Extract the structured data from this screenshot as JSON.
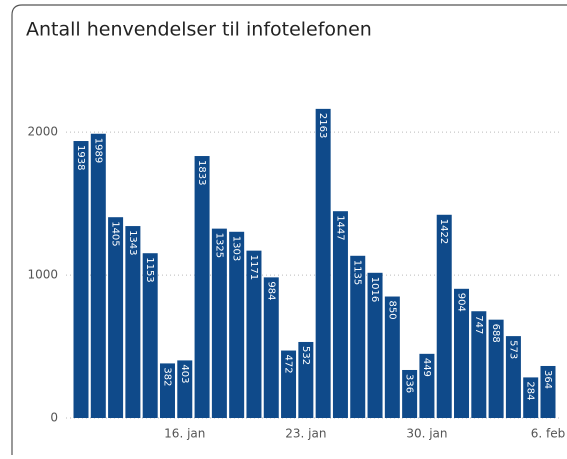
{
  "chart_data": {
    "type": "bar",
    "title": "Antall henvendelser til infotelefonen",
    "categories": [
      null,
      null,
      null,
      null,
      null,
      null,
      "16. jan",
      null,
      null,
      null,
      null,
      null,
      null,
      "23. jan",
      null,
      null,
      null,
      null,
      null,
      null,
      "30. jan",
      null,
      null,
      null,
      null,
      null,
      null,
      "6. feb"
    ],
    "values": [
      1938,
      1989,
      1405,
      1343,
      1153,
      382,
      403,
      1833,
      1325,
      1303,
      1171,
      984,
      472,
      532,
      2163,
      1447,
      1135,
      1016,
      850,
      336,
      449,
      1422,
      904,
      747,
      688,
      573,
      284,
      364
    ],
    "color": "#0f4a8a",
    "ylim": [
      0,
      2400
    ],
    "yticks": [
      0,
      1000,
      2000
    ],
    "grid": true
  }
}
